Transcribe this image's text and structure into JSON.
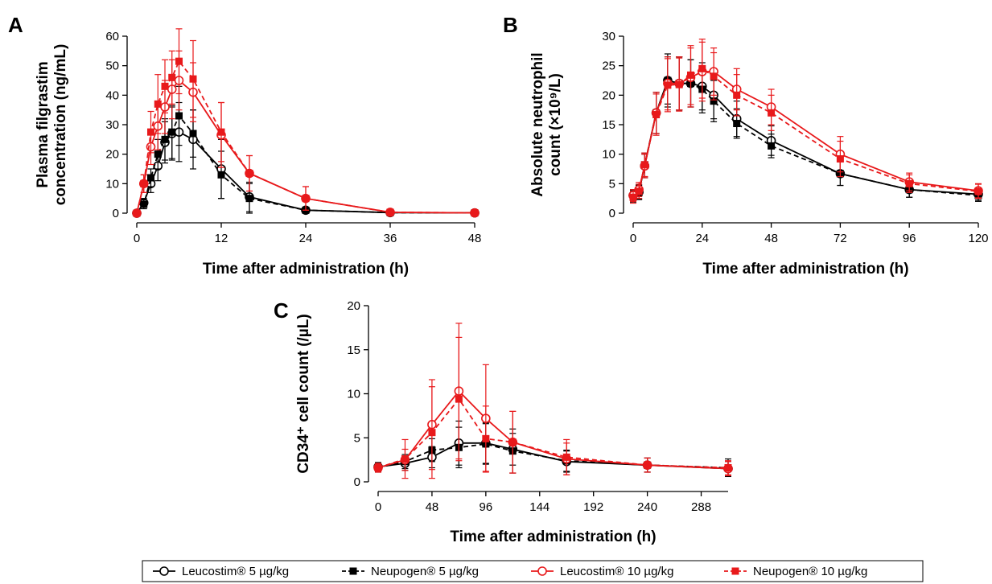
{
  "legend": [
    {
      "label": "Leucostim® 5 µg/kg",
      "color": "#000000",
      "marker": "open-circle",
      "line": "solid"
    },
    {
      "label": "Neupogen® 5 µg/kg",
      "color": "#000000",
      "marker": "filled-square",
      "line": "dashed"
    },
    {
      "label": "Leucostim® 10 µg/kg",
      "color": "#e8191b",
      "marker": "open-circle",
      "line": "solid"
    },
    {
      "label": "Neupogen® 10 µg/kg",
      "color": "#e8191b",
      "marker": "filled-square",
      "line": "dashed"
    }
  ],
  "chart_data": [
    {
      "panel": "A",
      "type": "line",
      "xlabel": "Time after administration (h)",
      "ylabel": [
        "Plasma filgrastim",
        "concentration (ng/mL)"
      ],
      "xlim": [
        0,
        48
      ],
      "ylim": [
        0,
        60
      ],
      "xticks": [
        0,
        12,
        24,
        36,
        48
      ],
      "yticks": [
        0,
        10,
        20,
        30,
        40,
        50,
        60
      ],
      "series": [
        {
          "name": "Leucostim® 5 µg/kg",
          "x": [
            0,
            1,
            2,
            3,
            4,
            5,
            6,
            8,
            12,
            16,
            24,
            36,
            48
          ],
          "y": [
            0,
            3.5,
            10,
            16,
            24,
            27,
            27.5,
            25,
            15,
            5.5,
            1,
            0.2,
            0.1
          ],
          "err": [
            0,
            1.5,
            3,
            5,
            7,
            9,
            10,
            10,
            10,
            5,
            0.8,
            0.1,
            0.1
          ]
        },
        {
          "name": "Neupogen® 5 µg/kg",
          "x": [
            0,
            1,
            2,
            3,
            4,
            5,
            6,
            8,
            12,
            16,
            24,
            36,
            48
          ],
          "y": [
            0,
            3,
            12,
            20,
            25,
            27.5,
            33,
            27,
            13,
            5,
            1,
            0.2,
            0.1
          ],
          "err": [
            0,
            1.5,
            3,
            5,
            7,
            9,
            10,
            8,
            8,
            5,
            0.8,
            0.1,
            0.1
          ]
        },
        {
          "name": "Leucostim® 10 µg/kg",
          "x": [
            0,
            1,
            2,
            3,
            4,
            5,
            6,
            8,
            12,
            16,
            24,
            36,
            48
          ],
          "y": [
            0,
            10,
            22.5,
            29.5,
            36,
            42,
            45,
            41,
            26.5,
            13.5,
            5,
            0.3,
            0.1
          ],
          "err": [
            0,
            3,
            6,
            8,
            9,
            10,
            10,
            10,
            11,
            6,
            4,
            0.3,
            0.1
          ]
        },
        {
          "name": "Neupogen® 10 µg/kg",
          "x": [
            0,
            1,
            2,
            3,
            4,
            5,
            6,
            8,
            12,
            16,
            24,
            36,
            48
          ],
          "y": [
            0,
            10,
            27.5,
            37,
            43,
            46,
            51.5,
            45.5,
            27.5,
            13.5,
            5,
            0.3,
            0.1
          ],
          "err": [
            0,
            3,
            7,
            10,
            9,
            9,
            11,
            13,
            10,
            6,
            4,
            0.3,
            0.1
          ]
        }
      ]
    },
    {
      "panel": "B",
      "type": "line",
      "xlabel": "Time after administration (h)",
      "ylabel": [
        "Absolute neutrophil",
        "count (×10⁹/L)"
      ],
      "xlim": [
        0,
        120
      ],
      "ylim": [
        0,
        30
      ],
      "xticks": [
        0,
        24,
        48,
        72,
        96,
        120
      ],
      "yticks": [
        0,
        5,
        10,
        15,
        20,
        25,
        30
      ],
      "series": [
        {
          "name": "Leucostim® 5 µg/kg",
          "x": [
            0,
            2,
            4,
            8,
            12,
            16,
            20,
            24,
            28,
            36,
            48,
            72,
            96,
            120
          ],
          "y": [
            3,
            3.6,
            8,
            17,
            22.5,
            22,
            22,
            21.5,
            20,
            16,
            12.3,
            6.7,
            4,
            3.2
          ],
          "err": [
            1,
            1.2,
            2,
            3.5,
            4,
            4.5,
            4,
            4,
            4,
            3,
            2.5,
            2,
            1.3,
            1
          ]
        },
        {
          "name": "Neupogen® 5 µg/kg",
          "x": [
            0,
            2,
            4,
            8,
            12,
            16,
            20,
            24,
            28,
            36,
            48,
            72,
            96,
            120
          ],
          "y": [
            2.8,
            3.5,
            8.2,
            17,
            22.5,
            22,
            22,
            21,
            19,
            15.2,
            11.4,
            6.7,
            4,
            3
          ],
          "err": [
            1,
            1.2,
            2,
            3.5,
            4.5,
            4.5,
            4,
            4,
            3.5,
            2.5,
            2,
            2,
            1.3,
            1
          ]
        },
        {
          "name": "Leucostim® 10 µg/kg",
          "x": [
            0,
            2,
            4,
            8,
            12,
            16,
            20,
            24,
            28,
            36,
            48,
            72,
            96,
            120
          ],
          "y": [
            3,
            4,
            8,
            17,
            22,
            22,
            23,
            24,
            24,
            21,
            18,
            10,
            5.3,
            3.8
          ],
          "err": [
            1,
            1.2,
            2,
            3.5,
            4.5,
            4.5,
            5,
            5,
            4,
            3.5,
            3,
            3,
            1.5,
            1.2
          ]
        },
        {
          "name": "Neupogen® 10 µg/kg",
          "x": [
            0,
            2,
            4,
            8,
            12,
            16,
            20,
            24,
            28,
            36,
            48,
            72,
            96,
            120
          ],
          "y": [
            2.7,
            3.7,
            8.2,
            16.7,
            21.7,
            21.8,
            23.4,
            24.5,
            23.2,
            20,
            17,
            9.2,
            5,
            3.7
          ],
          "err": [
            1,
            1.2,
            2,
            3.5,
            4.5,
            4.5,
            5,
            5,
            4,
            3.5,
            3,
            3,
            1.5,
            1.2
          ]
        }
      ]
    },
    {
      "panel": "C",
      "type": "line",
      "xlabel": "Time after administration (h)",
      "ylabel": [
        "CD34⁺ cell count (/µL)"
      ],
      "xlim": [
        0,
        312
      ],
      "ylim": [
        0,
        20
      ],
      "xticks": [
        0,
        48,
        96,
        144,
        192,
        240,
        288
      ],
      "yticks": [
        0,
        5,
        10,
        15,
        20
      ],
      "series": [
        {
          "name": "Leucostim® 5 µg/kg",
          "x": [
            0,
            24,
            48,
            72,
            96,
            120,
            168,
            240,
            312
          ],
          "y": [
            1.7,
            2.1,
            2.8,
            4.4,
            4.4,
            3.7,
            2.3,
            1.9,
            1.5
          ],
          "err": [
            0.5,
            0.8,
            1.2,
            2.5,
            2.3,
            1.8,
            1.2,
            0.8,
            0.8
          ]
        },
        {
          "name": "Neupogen® 5 µg/kg",
          "x": [
            0,
            24,
            48,
            72,
            96,
            120,
            168,
            240,
            312
          ],
          "y": [
            1.6,
            2.3,
            3.6,
            3.9,
            4.3,
            3.5,
            2.4,
            1.9,
            1.6
          ],
          "err": [
            0.5,
            0.8,
            1.3,
            2.3,
            2.3,
            2.5,
            1.2,
            0.8,
            1
          ]
        },
        {
          "name": "Leucostim® 10 µg/kg",
          "x": [
            0,
            24,
            48,
            72,
            96,
            120,
            168,
            240,
            312
          ],
          "y": [
            1.6,
            2.5,
            6.5,
            10.3,
            7.2,
            4.5,
            2.6,
            1.9,
            1.5
          ],
          "err": [
            0.5,
            1.2,
            5.1,
            7.7,
            6.1,
            3.5,
            1.8,
            0.8,
            0.8
          ]
        },
        {
          "name": "Neupogen® 10 µg/kg",
          "x": [
            0,
            24,
            48,
            72,
            96,
            120,
            168,
            240,
            312
          ],
          "y": [
            1.6,
            2.6,
            5.6,
            9.4,
            4.9,
            4.5,
            2.8,
            1.9,
            1.6
          ],
          "err": [
            0.5,
            2.2,
            5.2,
            7,
            3.7,
            3.5,
            2,
            0.8,
            0.8
          ]
        }
      ]
    }
  ]
}
